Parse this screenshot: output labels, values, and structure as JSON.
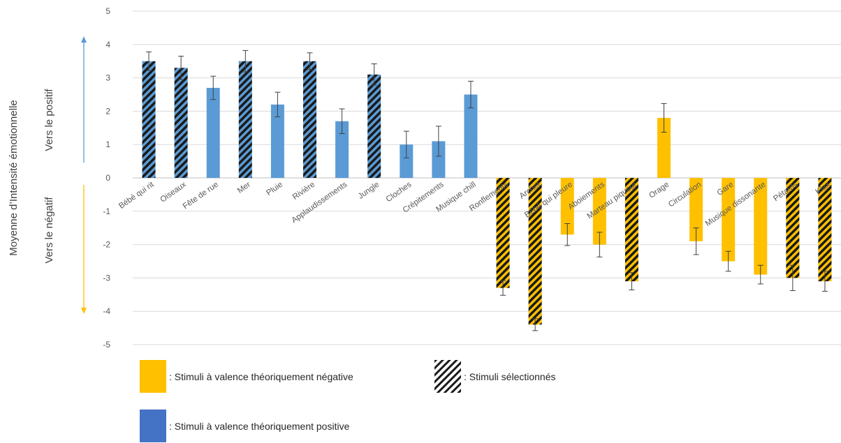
{
  "chart_data": {
    "type": "bar",
    "ylabel": "Moyenne d’Intensité émotionnelle",
    "ylim": [
      -5,
      5
    ],
    "yticks": [
      5,
      4,
      3,
      2,
      1,
      0,
      -1,
      -2,
      -3,
      -4,
      -5
    ],
    "grid": true,
    "annotations": {
      "positive": "Vers le positif",
      "negative": "Vers le négatif"
    },
    "categories": [
      "Bébé qui rit",
      "Oiseaux",
      "Fête de rue",
      "Mer",
      "Pluie",
      "Rivière",
      "Applaudissements",
      "Jungle",
      "Cloches",
      "Crépitements",
      "Musique chill",
      "Ronflements",
      "Archet",
      "Bébé qui pleure",
      "Aboiements",
      "Marteau piqueur",
      "Orage",
      "Circulation",
      "Gare",
      "Musique dissonante",
      "Pétards",
      "Klax"
    ],
    "values": [
      3.5,
      3.3,
      2.7,
      3.5,
      2.2,
      3.5,
      1.7,
      3.1,
      1.0,
      1.1,
      2.5,
      -3.3,
      -4.4,
      -1.7,
      -2.0,
      -3.1,
      1.8,
      -1.9,
      -2.5,
      -2.9,
      -3.0,
      -3.1
    ],
    "errors": [
      0.28,
      0.35,
      0.35,
      0.32,
      0.37,
      0.25,
      0.37,
      0.32,
      0.4,
      0.45,
      0.4,
      0.22,
      0.18,
      0.33,
      0.37,
      0.26,
      0.43,
      0.4,
      0.3,
      0.28,
      0.38,
      0.3
    ],
    "valence": [
      "positive",
      "positive",
      "positive",
      "positive",
      "positive",
      "positive",
      "positive",
      "positive",
      "positive",
      "positive",
      "positive",
      "negative",
      "negative",
      "negative",
      "negative",
      "negative",
      "negative",
      "negative",
      "negative",
      "negative",
      "negative",
      "negative"
    ],
    "selected": [
      true,
      true,
      false,
      true,
      false,
      true,
      false,
      true,
      false,
      false,
      false,
      true,
      true,
      false,
      false,
      true,
      false,
      false,
      false,
      false,
      true,
      true
    ],
    "colors": {
      "positive": "#5B9BD5",
      "negative": "#FFC000",
      "hatch": "#1a1a1a",
      "legend_positive": "#4472C4",
      "arrow_positive": "#5B9BD5",
      "arrow_negative": "#FFC000",
      "error_bar": "#404040"
    },
    "legend": {
      "negative_label": ": Stimuli à valence théoriquement  négative",
      "selected_label": ": Stimuli sélectionnés",
      "positive_label": ": Stimuli à valence théoriquement  positive"
    }
  }
}
